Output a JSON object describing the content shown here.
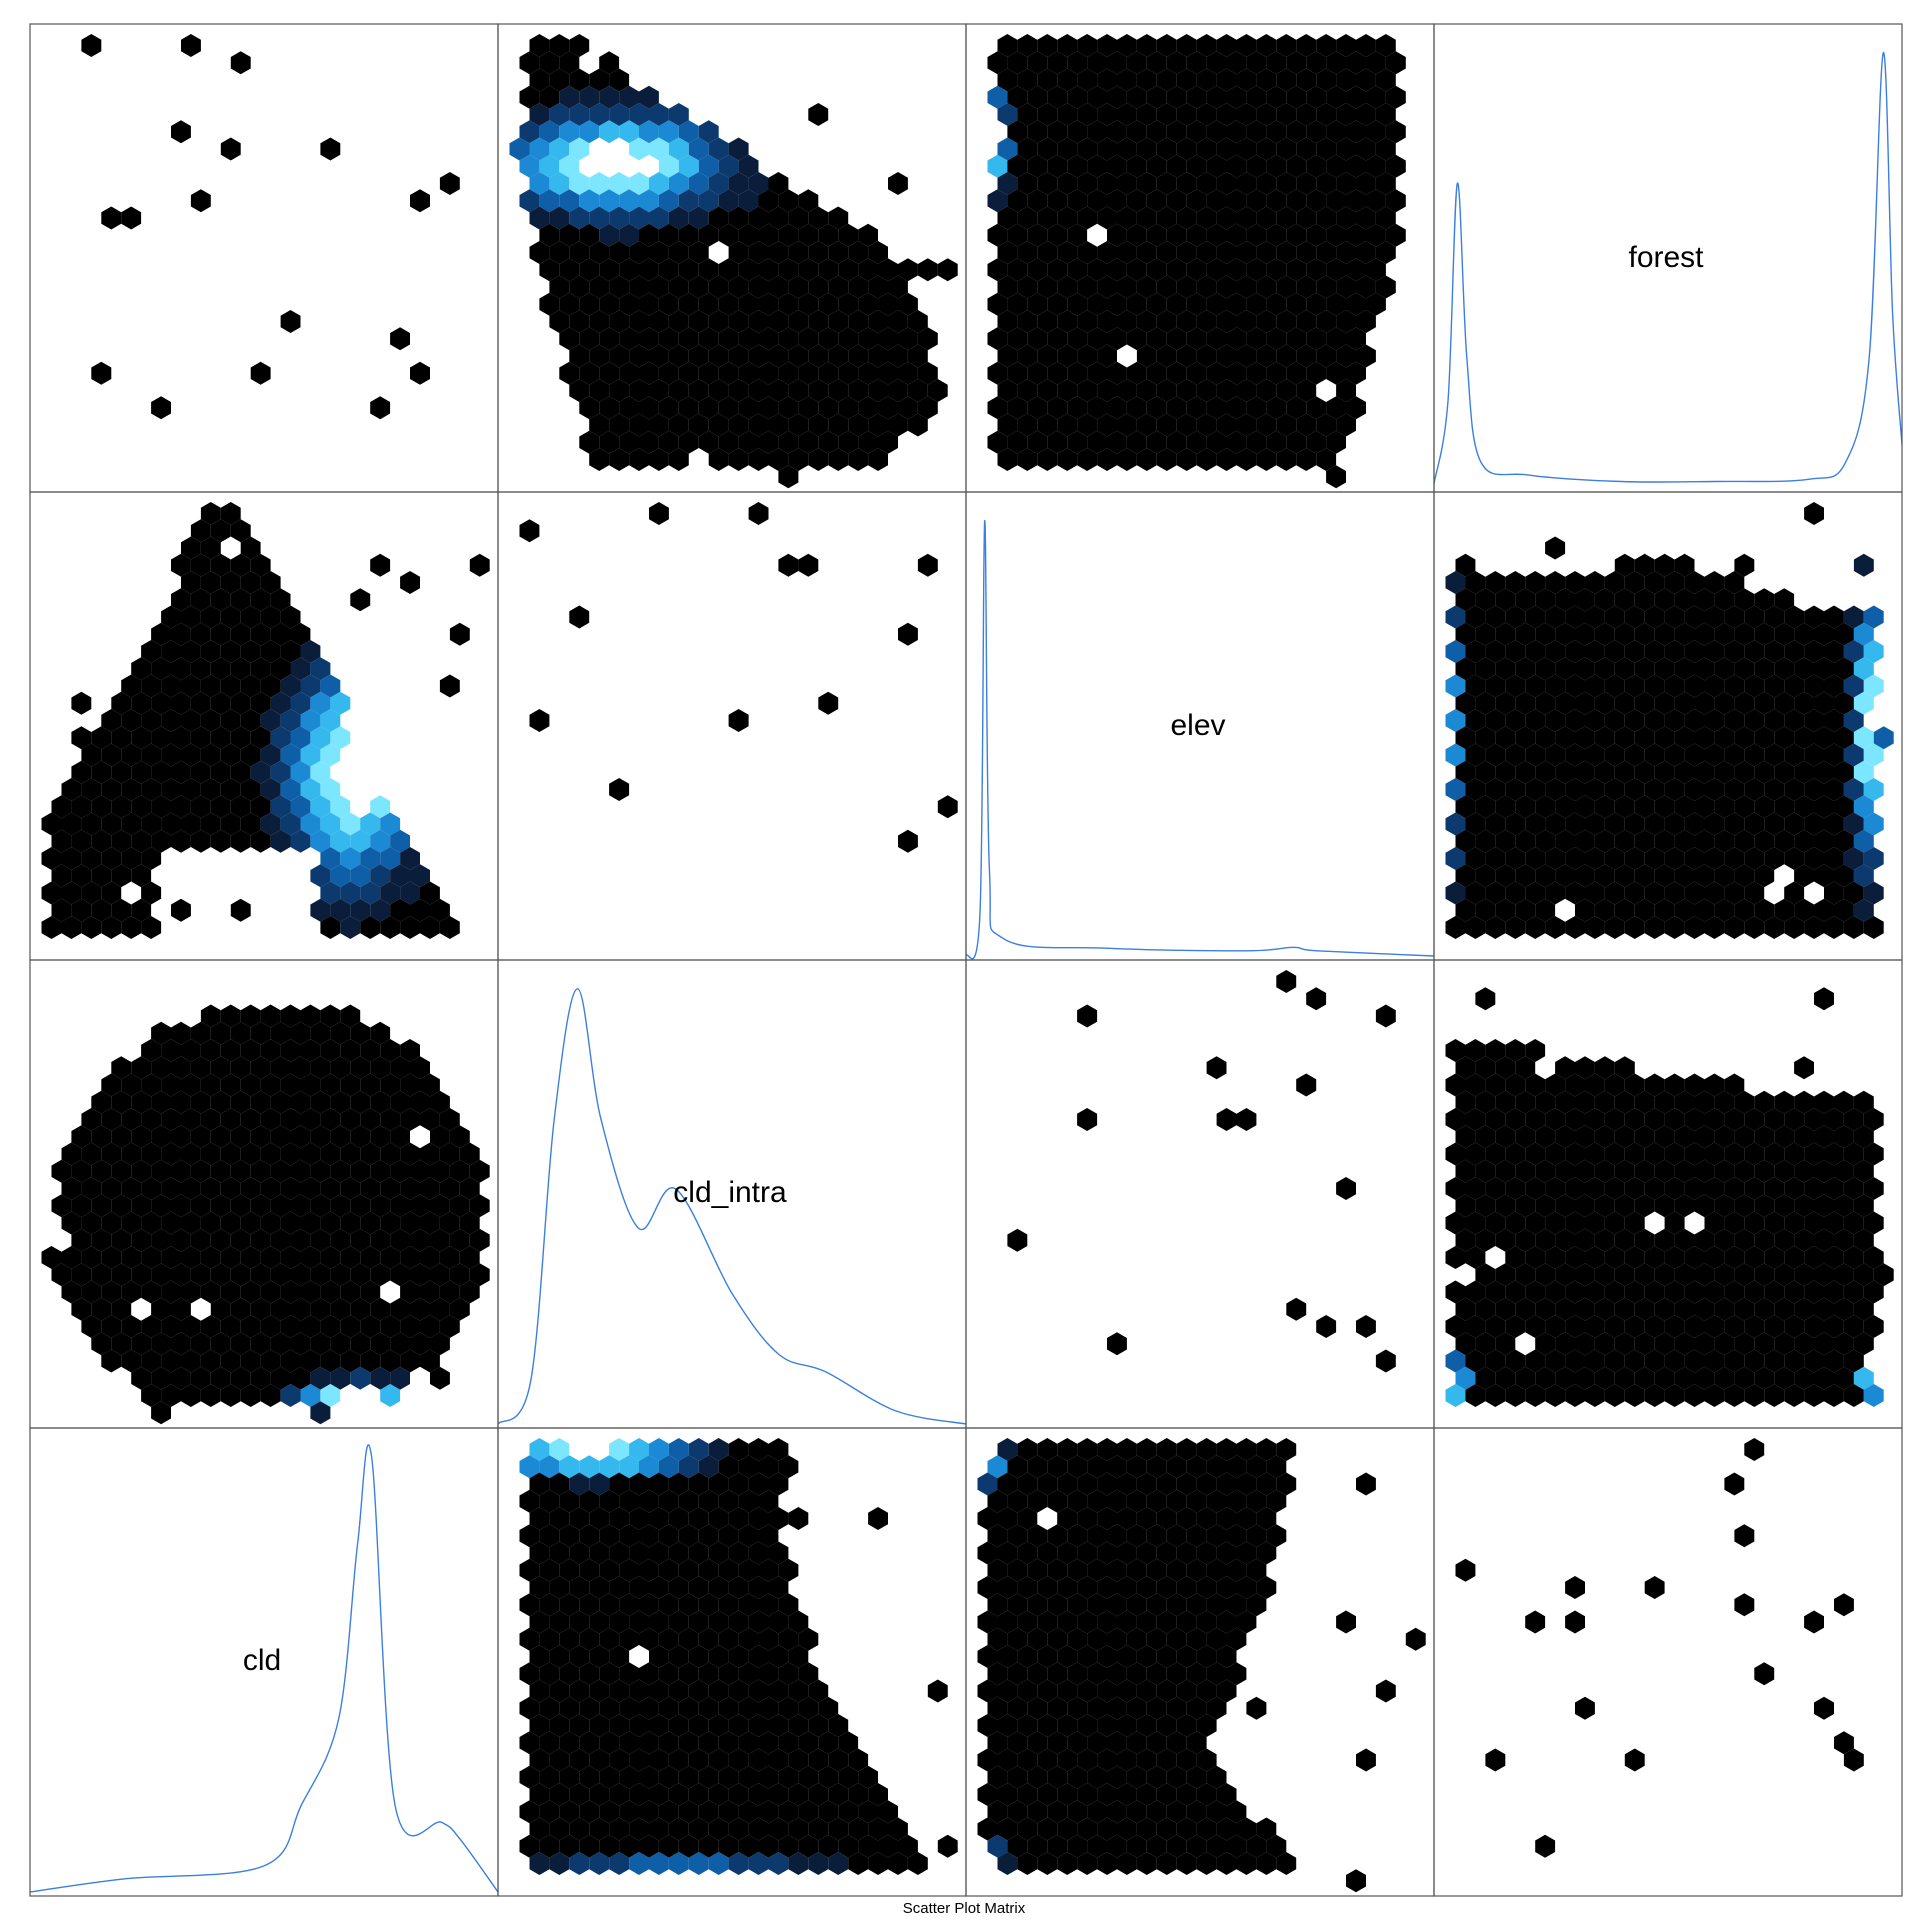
{
  "chart_data": {
    "type": "hexbin-scatter-matrix",
    "caption": "Scatter Plot Matrix",
    "variables": [
      "cld",
      "cld_intra",
      "elev",
      "forest"
    ],
    "layout": "variables run along the anti-diagonal: cld bottom-left, forest top-right",
    "diagonal": "kernel density curve per variable",
    "grid": false,
    "colors": {
      "density_line": "#3b7fe0",
      "frame": "#555555",
      "hex_scale": [
        "#000000",
        "#0a1e3c",
        "#0c3a6e",
        "#0f5fa8",
        "#1c89d4",
        "#35b8ee",
        "#7de6ff",
        "#ffffff"
      ]
    },
    "densities": {
      "forest": [
        [
          0,
          1
        ],
        [
          0.03,
          20
        ],
        [
          0.05,
          70
        ],
        [
          0.07,
          30
        ],
        [
          0.1,
          6
        ],
        [
          0.2,
          3
        ],
        [
          0.4,
          1.5
        ],
        [
          0.6,
          1.5
        ],
        [
          0.8,
          2
        ],
        [
          0.88,
          6
        ],
        [
          0.93,
          30
        ],
        [
          0.96,
          100
        ],
        [
          0.98,
          40
        ],
        [
          1,
          10
        ]
      ],
      "elev": [
        [
          0,
          0
        ],
        [
          0.03,
          10
        ],
        [
          0.04,
          100
        ],
        [
          0.05,
          20
        ],
        [
          0.08,
          4
        ],
        [
          0.3,
          1.8
        ],
        [
          0.6,
          1.2
        ],
        [
          0.7,
          2
        ],
        [
          0.75,
          1.2
        ],
        [
          1,
          0
        ]
      ],
      "cld_intra": [
        [
          0,
          0
        ],
        [
          0.07,
          10
        ],
        [
          0.12,
          70
        ],
        [
          0.17,
          100
        ],
        [
          0.22,
          70
        ],
        [
          0.3,
          45
        ],
        [
          0.38,
          54
        ],
        [
          0.5,
          30
        ],
        [
          0.6,
          16
        ],
        [
          0.7,
          12
        ],
        [
          0.85,
          3
        ],
        [
          1,
          0
        ]
      ],
      "cld": [
        [
          0,
          0
        ],
        [
          0.2,
          3
        ],
        [
          0.5,
          6
        ],
        [
          0.58,
          20
        ],
        [
          0.66,
          40
        ],
        [
          0.7,
          80
        ],
        [
          0.73,
          100
        ],
        [
          0.78,
          20
        ],
        [
          0.88,
          16
        ],
        [
          0.92,
          12
        ],
        [
          1,
          0
        ]
      ]
    }
  }
}
